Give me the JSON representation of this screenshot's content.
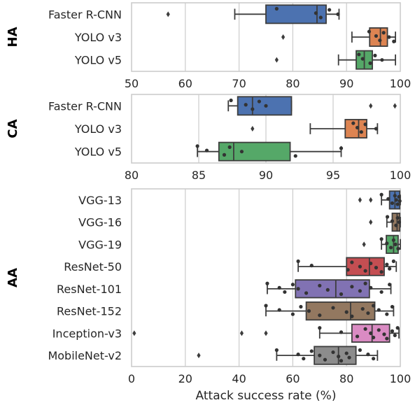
{
  "chart_data": {
    "type": "box",
    "xlabel": "Attack success rate (%)",
    "grid": "vertical",
    "colors": {
      "blue": "#4c72b0",
      "orange": "#dd8452",
      "green": "#55a868",
      "red": "#c44e52",
      "purple": "#8172b3",
      "brown": "#937860",
      "pink": "#da8bc3",
      "gray": "#8c8c8c"
    },
    "panels": [
      {
        "label": "HA",
        "xlim": [
          50,
          100
        ],
        "xticks": [
          50,
          60,
          70,
          80,
          90,
          100
        ],
        "boxes": [
          {
            "name": "Faster R-CNN",
            "color": "blue",
            "whislo": 69.2,
            "q1": 75,
            "median": 84.5,
            "q3": 86.2,
            "whishi": 88.6,
            "fliers": [
              56.8
            ],
            "points": [
              77,
              84.3,
              85.2,
              86.8,
              88.4
            ]
          },
          {
            "name": "YOLO v3",
            "color": "orange",
            "whislo": 91,
            "q1": 94.3,
            "median": 96.3,
            "q3": 97.6,
            "whishi": 99.1,
            "fliers": [
              78.2
            ],
            "points": [
              94.2,
              95.5,
              96.2,
              96.9,
              97.9,
              98.8
            ]
          },
          {
            "name": "YOLO v5",
            "color": "green",
            "whislo": 88.5,
            "q1": 91.8,
            "median": 93.3,
            "q3": 94.8,
            "whishi": 99.1,
            "fliers": [
              77
            ],
            "points": [
              92.3,
              93,
              94.4,
              95.3,
              96.6
            ]
          }
        ]
      },
      {
        "label": "CA",
        "xlim": [
          80,
          100
        ],
        "xticks": [
          80,
          85,
          90,
          95,
          100
        ],
        "boxes": [
          {
            "name": "Faster R-CNN",
            "color": "blue",
            "whislo": 87.2,
            "q1": 87.9,
            "median": 89,
            "q3": 91.9,
            "whishi": 91.9,
            "fliers": [
              97.8,
              99.6
            ],
            "points": [
              87.4,
              88.5,
              89,
              89.5,
              90
            ]
          },
          {
            "name": "YOLO v3",
            "color": "orange",
            "whislo": 93.3,
            "q1": 95.9,
            "median": 96.9,
            "q3": 97.5,
            "whishi": 98.3,
            "fliers": [
              89
            ],
            "points": [
              96.5,
              96.8,
              97.1,
              97.4,
              98.2
            ]
          },
          {
            "name": "YOLO v5",
            "color": "green",
            "whislo": 84.9,
            "q1": 86.5,
            "median": 87.6,
            "q3": 91.8,
            "whishi": 95.6,
            "fliers": [],
            "points": [
              84.9,
              85.6,
              86.9,
              87.3,
              88.2,
              92.2,
              95.6
            ]
          }
        ]
      },
      {
        "label": "AA",
        "xlim": [
          0,
          100
        ],
        "xticks": [
          0,
          20,
          40,
          60,
          80,
          100
        ],
        "boxes": [
          {
            "name": "VGG-13",
            "color": "blue",
            "whislo": 93,
            "q1": 96,
            "median": 98,
            "q3": 99.8,
            "whishi": 100,
            "fliers": [
              85,
              89
            ],
            "points": [
              93,
              95.5,
              97,
              98,
              98.5,
              99,
              99.5,
              99.8
            ]
          },
          {
            "name": "VGG-16",
            "color": "brown",
            "whislo": 95,
            "q1": 97,
            "median": 98.8,
            "q3": 99.8,
            "whishi": 100,
            "fliers": [
              89
            ],
            "points": [
              95.2,
              97,
              98.4,
              99,
              99.6
            ]
          },
          {
            "name": "VGG-19",
            "color": "green",
            "whislo": 93,
            "q1": 94.8,
            "median": 97.5,
            "q3": 99.2,
            "whishi": 100,
            "fliers": [
              86.5
            ],
            "points": [
              93,
              95,
              96.5,
              97.5,
              98.2,
              99.2
            ]
          },
          {
            "name": "ResNet-50",
            "color": "red",
            "whislo": 62,
            "q1": 80,
            "median": 88.5,
            "q3": 94,
            "whishi": 98.5,
            "fliers": [],
            "points": [
              62,
              67,
              80.5,
              82,
              85,
              87,
              89,
              91,
              93,
              95,
              96,
              97.5
            ]
          },
          {
            "name": "ResNet-101",
            "color": "purple",
            "whislo": 50.5,
            "q1": 61,
            "median": 76,
            "q3": 88.5,
            "whishi": 96.5,
            "fliers": [],
            "points": [
              50.5,
              55,
              57,
              60,
              62,
              65,
              70,
              73,
              78,
              82,
              85,
              87,
              89,
              93,
              96
            ]
          },
          {
            "name": "ResNet-152",
            "color": "brown",
            "whislo": 50,
            "q1": 65,
            "median": 81.5,
            "q3": 90.5,
            "whishi": 97.5,
            "fliers": [],
            "points": [
              50,
              55,
              60,
              63,
              66,
              70,
              75,
              80,
              82,
              86,
              88,
              90,
              92,
              95,
              97
            ]
          },
          {
            "name": "Inception-v3",
            "color": "pink",
            "whislo": 70,
            "q1": 82,
            "median": 89.5,
            "q3": 96,
            "whishi": 99.5,
            "fliers": [
              1,
              41,
              50
            ],
            "points": [
              70,
              78,
              84,
              87,
              89,
              90,
              92,
              94,
              95,
              97,
              98,
              99
            ]
          },
          {
            "name": "MobileNet-v2",
            "color": "gray",
            "whislo": 54,
            "q1": 68,
            "median": 77,
            "q3": 83.5,
            "whishi": 91.5,
            "fliers": [
              25
            ],
            "points": [
              54,
              62,
              64,
              67,
              70,
              72,
              75,
              77,
              78,
              80,
              81,
              85,
              88,
              90
            ]
          }
        ]
      }
    ]
  }
}
